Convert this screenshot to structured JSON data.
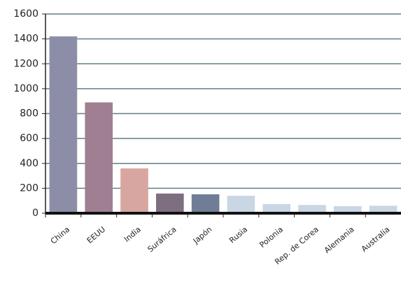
{
  "chart_data": {
    "type": "bar",
    "categories": [
      "China",
      "EEUU",
      "India",
      "Suráfrica",
      "Japón",
      "Rusia",
      "Polonia",
      "Rep. de Corea",
      "Alemania",
      "Australia"
    ],
    "values": [
      1420,
      890,
      360,
      158,
      152,
      140,
      73,
      66,
      57,
      60
    ],
    "colors": [
      "#8c8ea8",
      "#a07f92",
      "#d8a6a0",
      "#7d6f80",
      "#6f7e96",
      "#c9d6e4",
      "#c9d6e4",
      "#c9d6e4",
      "#c9d6e4",
      "#c9d6e4"
    ],
    "ylim": [
      0,
      1600
    ],
    "yticks": [
      0,
      200,
      400,
      600,
      800,
      1000,
      1200,
      1400,
      1600
    ],
    "grid": true
  }
}
